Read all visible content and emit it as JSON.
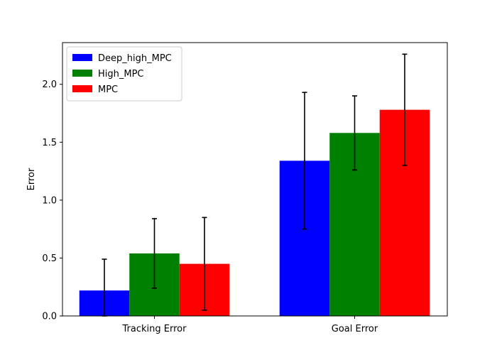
{
  "chart_data": {
    "type": "bar",
    "title": "",
    "xlabel": "",
    "ylabel": "Error",
    "ylim": [
      0,
      2.36
    ],
    "yticks": [
      0.0,
      0.5,
      1.0,
      1.5,
      2.0
    ],
    "ytick_labels": [
      "0.0",
      "0.5",
      "1.0",
      "1.5",
      "2.0"
    ],
    "categories": [
      "Tracking Error",
      "Goal Error"
    ],
    "grid": false,
    "legend_position": "top-left",
    "error_bars": true,
    "series": [
      {
        "name": "Deep_high_MPC",
        "color": "#0000ff",
        "values": [
          0.22,
          1.34
        ],
        "errors": [
          0.27,
          0.59
        ]
      },
      {
        "name": "High_MPC",
        "color": "#008000",
        "values": [
          0.54,
          1.58
        ],
        "errors": [
          0.3,
          0.32
        ]
      },
      {
        "name": "MPC",
        "color": "#ff0000",
        "values": [
          0.45,
          1.78
        ],
        "errors": [
          0.4,
          0.48
        ]
      }
    ]
  }
}
